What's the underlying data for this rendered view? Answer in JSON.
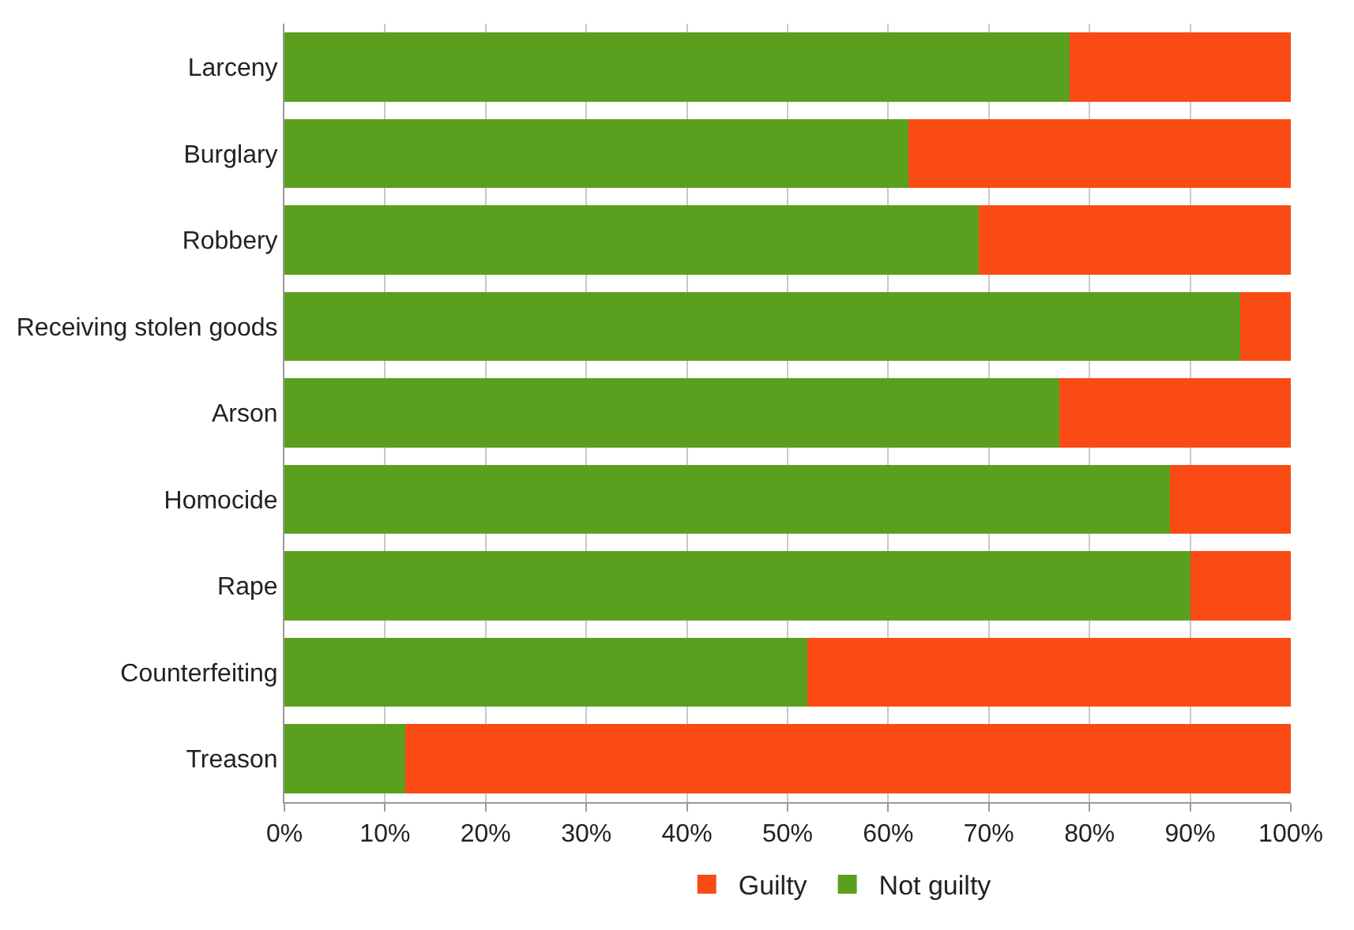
{
  "chart_data": {
    "type": "bar",
    "orientation": "horizontal",
    "stacked": true,
    "categories": [
      "Larceny",
      "Burglary",
      "Robbery",
      "Receiving stolen goods",
      "Arson",
      "Homocide",
      "Rape",
      "Counterfeiting",
      "Treason"
    ],
    "series": [
      {
        "name": "Not guilty",
        "color": "#5aa01e",
        "values": [
          78,
          62,
          69,
          95,
          77,
          88,
          90,
          52,
          12
        ]
      },
      {
        "name": "Guilty",
        "color": "#fa4b14",
        "values": [
          22,
          38,
          31,
          5,
          23,
          12,
          10,
          48,
          88
        ]
      }
    ],
    "xlim": [
      0,
      100
    ],
    "xticks": [
      {
        "value": 0,
        "label": "0%"
      },
      {
        "value": 10,
        "label": "10%"
      },
      {
        "value": 20,
        "label": "20%"
      },
      {
        "value": 30,
        "label": "30%"
      },
      {
        "value": 40,
        "label": "40%"
      },
      {
        "value": 50,
        "label": "50%"
      },
      {
        "value": 60,
        "label": "60%"
      },
      {
        "value": 70,
        "label": "70%"
      },
      {
        "value": 80,
        "label": "80%"
      },
      {
        "value": 90,
        "label": "90%"
      },
      {
        "value": 100,
        "label": "100%"
      }
    ],
    "grid": "x",
    "legend": "bottom"
  }
}
